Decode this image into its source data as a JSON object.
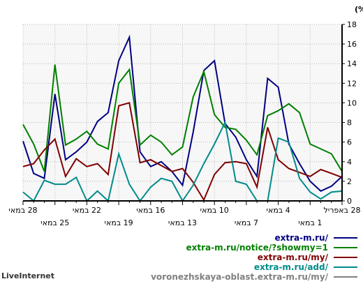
{
  "chart_data": {
    "type": "line",
    "ylabel": "חלק (%)",
    "ylim": [
      0,
      18
    ],
    "y_ticks": [
      0,
      2,
      4,
      6,
      8,
      10,
      12,
      14,
      16,
      18
    ],
    "y_axis_side": "right",
    "x_direction": "right-to-left",
    "grid": true,
    "x": [
      "28 באפריל",
      "29",
      "30",
      "1 במאי",
      "2",
      "3",
      "4 במאי",
      "5",
      "6",
      "7 במאי",
      "8",
      "9",
      "10 במאי",
      "11",
      "12",
      "13 במאי",
      "14",
      "15",
      "16 במאי",
      "17",
      "18",
      "19 במאי",
      "20",
      "21",
      "22 במאי",
      "23",
      "24",
      "25 במאי",
      "26",
      "27",
      "28 במאי"
    ],
    "x_tick_labels": [
      {
        "index": 0,
        "label": "28 באפריל",
        "row": 1
      },
      {
        "index": 3,
        "label": "1 במאי",
        "row": 2
      },
      {
        "index": 6,
        "label": "4 במאי",
        "row": 1
      },
      {
        "index": 9,
        "label": "7 במאי",
        "row": 2
      },
      {
        "index": 12,
        "label": "10 במאי",
        "row": 1
      },
      {
        "index": 15,
        "label": "13 במאי",
        "row": 2
      },
      {
        "index": 18,
        "label": "16 במאי",
        "row": 1
      },
      {
        "index": 21,
        "label": "19 במאי",
        "row": 2
      },
      {
        "index": 24,
        "label": "22 במאי",
        "row": 1
      },
      {
        "index": 27,
        "label": "25 במאי",
        "row": 2
      },
      {
        "index": 30,
        "label": "28 במאי",
        "row": 1
      }
    ],
    "series": [
      {
        "name": "extra-m.ru/",
        "color": "#000080",
        "values": [
          2.5,
          1.5,
          1.0,
          2.0,
          3.8,
          5.8,
          11.6,
          12.5,
          2.5,
          4.2,
          6.5,
          7.9,
          14.3,
          13.3,
          7.0,
          1.6,
          3.0,
          4.0,
          3.5,
          5.0,
          16.7,
          14.3,
          9.0,
          8.1,
          6.0,
          5.0,
          4.2,
          10.9,
          2.3,
          2.8,
          6.1
        ]
      },
      {
        "name": "extra-m.ru/notice/?showmy=1",
        "color": "#008000",
        "values": [
          3.0,
          4.8,
          5.3,
          5.8,
          9.0,
          9.9,
          9.2,
          8.7,
          4.7,
          6.2,
          7.3,
          7.5,
          8.8,
          13.2,
          10.6,
          5.5,
          4.7,
          6.0,
          6.7,
          5.7,
          13.4,
          12.0,
          5.3,
          5.8,
          7.1,
          6.3,
          5.7,
          13.9,
          3.0,
          5.8,
          7.8
        ]
      },
      {
        "name": "extra-m.ru/my/",
        "color": "#800000",
        "values": [
          2.4,
          2.8,
          3.2,
          2.5,
          2.9,
          3.3,
          4.2,
          7.5,
          1.4,
          3.8,
          4.0,
          3.9,
          2.7,
          0.1,
          1.9,
          3.3,
          3.0,
          3.6,
          4.2,
          3.9,
          10.0,
          9.7,
          2.7,
          3.8,
          3.5,
          4.3,
          2.5,
          6.3,
          5.2,
          3.8,
          3.5
        ]
      },
      {
        "name": "extra-m.ru/add/",
        "color": "#008B8B",
        "values": [
          1.0,
          0.9,
          0.2,
          0.9,
          2.3,
          6.0,
          6.4,
          0.0,
          0.0,
          1.7,
          2.0,
          8.0,
          5.8,
          3.8,
          1.6,
          0.0,
          2.0,
          2.3,
          1.4,
          0.0,
          1.7,
          4.8,
          0.0,
          1.0,
          0.0,
          2.4,
          1.7,
          1.7,
          2.1,
          0.0,
          0.9
        ]
      },
      {
        "name": "voronezhskaya-oblast.extra-m.ru/my/",
        "color": "#808080",
        "values": [
          0,
          0,
          0,
          0,
          0,
          0,
          0,
          0,
          0,
          0,
          0,
          0,
          0,
          0,
          0,
          0,
          0,
          0,
          0,
          0,
          0,
          0,
          0,
          0,
          0,
          0,
          0,
          0,
          0,
          0,
          0
        ]
      }
    ]
  },
  "footer": {
    "brand": "LiveInternet"
  }
}
